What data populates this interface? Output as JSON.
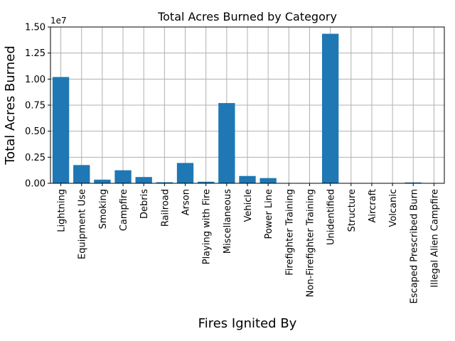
{
  "chart_data": {
    "type": "bar",
    "title": "Total Acres Burned by Category",
    "xlabel": "Fires Ignited By",
    "ylabel": "Total Acres Burned",
    "y_scale_label": "1e7",
    "ylim": [
      0,
      1.5
    ],
    "y_ticks": [
      "0.00",
      "0.25",
      "0.50",
      "0.75",
      "1.00",
      "1.25",
      "1.50"
    ],
    "grid": true,
    "bar_color": "#1f77b4",
    "categories": [
      "Lightning",
      "Equipment Use",
      "Smoking",
      "Campfire",
      "Debris",
      "Railroad",
      "Arson",
      "Playing with Fire",
      "Miscellaneous",
      "Vehicle",
      "Power Line",
      "Firefighter Training",
      "Non-Firefighter Training",
      "Unidentified",
      "Structure",
      "Aircraft",
      "Volcanic",
      "Escaped Prescribed Burn",
      "Illegal Alien Campfire"
    ],
    "values": [
      1.02,
      0.175,
      0.035,
      0.125,
      0.06,
      0.01,
      0.195,
      0.015,
      0.77,
      0.07,
      0.05,
      0.001,
      0.001,
      1.435,
      0.002,
      0.001,
      0.001,
      0.008,
      0.002
    ]
  }
}
